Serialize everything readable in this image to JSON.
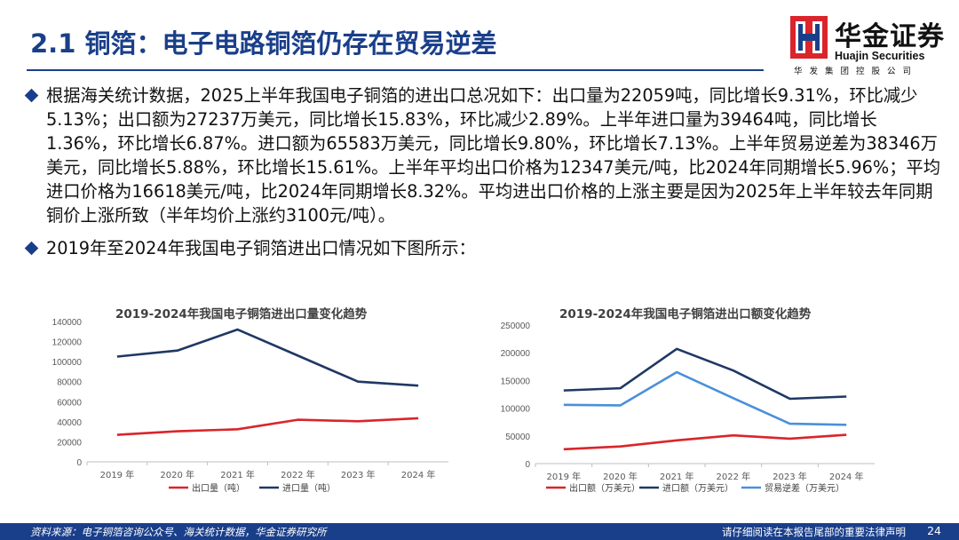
{
  "slide": {
    "title": "2.1 铜箔：电子电路铜箔仍存在贸易逆差",
    "page_number": "24"
  },
  "logo": {
    "cn": "华金证券",
    "en": "Huajin Securities",
    "sub": "华发集团控股公司"
  },
  "bullets": [
    "根据海关统计数据，2025上半年我国电子铜箔的进出口总况如下：出口量为22059吨，同比增长9.31%，环比减少5.13%；出口额为27237万美元，同比增长15.83%，环比减少2.89%。上半年进口量为39464吨，同比增长1.36%，环比增长6.87%。进口额为65583万美元，同比增长9.80%，环比增长7.13%。上半年贸易逆差为38346万美元，同比增长5.88%，环比增长15.61%。上半年平均出口价格为12347美元/吨，比2024年同期增长5.96%；平均进口价格为16618美元/吨，比2024年同期增长8.32%。平均进出口价格的上涨主要是因为2025年上半年较去年同期铜价上涨所致（半年均价上涨约3100元/吨）。",
    "2019年至2024年我国电子铜箔进出口情况如下图所示："
  ],
  "footer": {
    "source": "资料来源：电子铜箔咨询公众号、海关统计数据，华金证券研究所",
    "disclaimer": "请仔细阅读在本报告尾部的重要法律声明"
  },
  "colors": {
    "brand": "#1a3f8a",
    "export": "#d9252b",
    "import": "#1f3864",
    "deficit": "#4a90d9"
  },
  "chart_data": [
    {
      "type": "line",
      "title": "2019-2024年我国电子铜箔进出口量变化趋势",
      "categories": [
        "2019 年",
        "2020 年",
        "2021 年",
        "2022 年",
        "2023 年",
        "2024 年"
      ],
      "ylim": [
        0,
        140000
      ],
      "yticks": [
        "0",
        "20000",
        "40000",
        "60000",
        "80000",
        "100000",
        "120000",
        "140000"
      ],
      "legend_position": "bottom",
      "series": [
        {
          "name": "出口量（吨）",
          "color": "#d9252b",
          "values": [
            27000,
            30500,
            32500,
            42000,
            40500,
            43500
          ]
        },
        {
          "name": "进口量（吨）",
          "color": "#1f3864",
          "values": [
            105000,
            111000,
            132000,
            106000,
            80000,
            76000
          ]
        }
      ]
    },
    {
      "type": "line",
      "title": "2019-2024年我国电子铜箔进出口额变化趋势",
      "categories": [
        "2019 年",
        "2020 年",
        "2021 年",
        "2022 年",
        "2023 年",
        "2024 年"
      ],
      "ylim": [
        0,
        250000
      ],
      "yticks": [
        "0",
        "50000",
        "100000",
        "150000",
        "200000",
        "250000"
      ],
      "legend_position": "bottom",
      "series": [
        {
          "name": "出口额（万美元）",
          "color": "#d9252b",
          "values": [
            26000,
            31000,
            42000,
            51000,
            45000,
            52000
          ]
        },
        {
          "name": "进口额（万美元）",
          "color": "#1f3864",
          "values": [
            132000,
            136000,
            207000,
            168000,
            117000,
            121000
          ]
        },
        {
          "name": "贸易逆差（万美元）",
          "color": "#4a90d9",
          "values": [
            106000,
            105000,
            165000,
            118000,
            72000,
            70000
          ]
        }
      ]
    }
  ]
}
